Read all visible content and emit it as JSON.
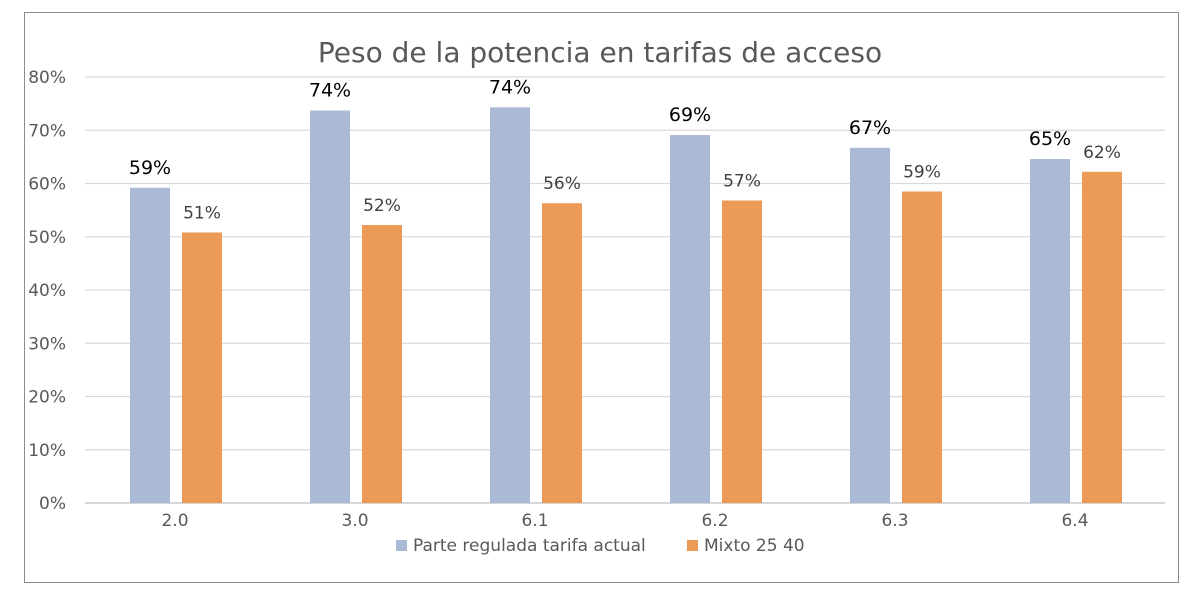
{
  "chart_data": {
    "type": "bar",
    "title": "Peso de la potencia en tarifas de acceso",
    "xlabel": "",
    "ylabel": "",
    "ylim": [
      0,
      80
    ],
    "yticks": [
      "0%",
      "10%",
      "20%",
      "30%",
      "40%",
      "50%",
      "60%",
      "70%",
      "80%"
    ],
    "grid": true,
    "legend_position": "bottom",
    "categories": [
      "2.0",
      "3.0",
      "6.1",
      "6.2",
      "6.3",
      "6.4"
    ],
    "series": [
      {
        "name": "Parte regulada tarifa actual",
        "color": "#aab9d5",
        "values": [
          59.2,
          73.7,
          74.3,
          69.1,
          66.7,
          64.6
        ],
        "labels": [
          "59%",
          "74%",
          "74%",
          "69%",
          "67%",
          "65%"
        ]
      },
      {
        "name": "Mixto 25 40",
        "color": "#eb9b56",
        "values": [
          50.8,
          52.2,
          56.3,
          56.8,
          58.5,
          62.2
        ],
        "labels": [
          "51%",
          "52%",
          "56%",
          "57%",
          "59%",
          "62%"
        ]
      }
    ]
  }
}
